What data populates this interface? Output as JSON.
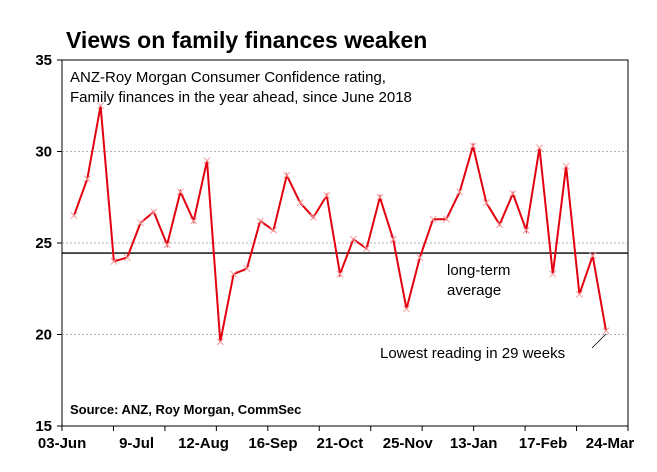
{
  "chart_data": {
    "type": "line",
    "title": "Views on family finances weaken",
    "subtitle_lines": [
      "ANZ-Roy Morgan Consumer Confidence rating,",
      "Family finances in the year ahead, since June 2018"
    ],
    "source": "Source: ANZ, Roy Morgan, CommSec",
    "xlabel": "",
    "ylabel": "",
    "ylim": [
      15,
      35
    ],
    "yticks": [
      "15",
      "20",
      "25",
      "30",
      "35"
    ],
    "grid": true,
    "x_tick_labels": [
      "03-Jun",
      "9-Jul",
      "12-Aug",
      "16-Sep",
      "21-Oct",
      "25-Nov",
      "13-Jan",
      "17-Feb",
      "24-Mar"
    ],
    "series": [
      {
        "name": "Family finances in the year ahead",
        "color": "#e3000f",
        "values": [
          26.5,
          28.5,
          32.5,
          24.0,
          24.2,
          26.1,
          26.7,
          24.9,
          27.8,
          26.2,
          29.5,
          19.6,
          23.3,
          23.6,
          26.2,
          25.7,
          28.7,
          27.2,
          26.4,
          27.6,
          23.3,
          25.2,
          24.7,
          27.5,
          25.2,
          21.4,
          24.2,
          26.3,
          26.3,
          27.8,
          30.3,
          27.2,
          26.0,
          27.7,
          25.7,
          30.2,
          23.3,
          29.2,
          22.2,
          24.3,
          20.2
        ]
      }
    ],
    "reference_line": {
      "label_lines": [
        "long-term",
        "average"
      ],
      "value": 24.45
    },
    "annotation": {
      "text": "Lowest reading in 29 weeks"
    }
  }
}
